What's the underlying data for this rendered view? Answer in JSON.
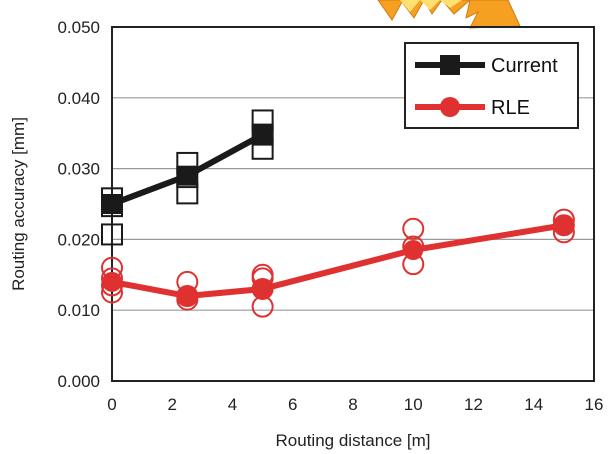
{
  "chart_data": {
    "type": "scatter",
    "xlabel": "Routing distance [m]",
    "ylabel": "Routing accuracy [mm]",
    "xlim": [
      0,
      16
    ],
    "ylim": [
      0,
      0.05
    ],
    "x_ticks": [
      "0",
      "2",
      "4",
      "6",
      "8",
      "10",
      "12",
      "14",
      "16"
    ],
    "y_ticks": [
      "0.000",
      "0.010",
      "0.020",
      "0.030",
      "0.040",
      "0.050"
    ],
    "grid": "horizontal",
    "legend_position": "top-right",
    "series": [
      {
        "name": "Current",
        "color": "#1a1a1a",
        "marker": "square",
        "mean": [
          {
            "x": 0,
            "y": 0.025
          },
          {
            "x": 2.5,
            "y": 0.029
          },
          {
            "x": 5,
            "y": 0.0348
          }
        ],
        "samples": [
          {
            "x": 0,
            "y": 0.0258
          },
          {
            "x": 0,
            "y": 0.0247
          },
          {
            "x": 0,
            "y": 0.0207
          },
          {
            "x": 2.5,
            "y": 0.0308
          },
          {
            "x": 2.5,
            "y": 0.0288
          },
          {
            "x": 2.5,
            "y": 0.0265
          },
          {
            "x": 5,
            "y": 0.0368
          },
          {
            "x": 5,
            "y": 0.0348
          },
          {
            "x": 5,
            "y": 0.0328
          }
        ]
      },
      {
        "name": "RLE",
        "color": "#e03131",
        "marker": "circle",
        "mean": [
          {
            "x": 0,
            "y": 0.014
          },
          {
            "x": 2.5,
            "y": 0.012
          },
          {
            "x": 5,
            "y": 0.013
          },
          {
            "x": 10,
            "y": 0.0185
          },
          {
            "x": 15,
            "y": 0.022
          }
        ],
        "samples": [
          {
            "x": 0,
            "y": 0.016
          },
          {
            "x": 0,
            "y": 0.0145
          },
          {
            "x": 0,
            "y": 0.0135
          },
          {
            "x": 0,
            "y": 0.0125
          },
          {
            "x": 2.5,
            "y": 0.014
          },
          {
            "x": 2.5,
            "y": 0.012
          },
          {
            "x": 2.5,
            "y": 0.0115
          },
          {
            "x": 5,
            "y": 0.015
          },
          {
            "x": 5,
            "y": 0.0145
          },
          {
            "x": 5,
            "y": 0.013
          },
          {
            "x": 5,
            "y": 0.0105
          },
          {
            "x": 10,
            "y": 0.0215
          },
          {
            "x": 10,
            "y": 0.019
          },
          {
            "x": 10,
            "y": 0.0165
          },
          {
            "x": 15,
            "y": 0.0228
          },
          {
            "x": 15,
            "y": 0.022
          },
          {
            "x": 15,
            "y": 0.021
          }
        ]
      }
    ]
  }
}
